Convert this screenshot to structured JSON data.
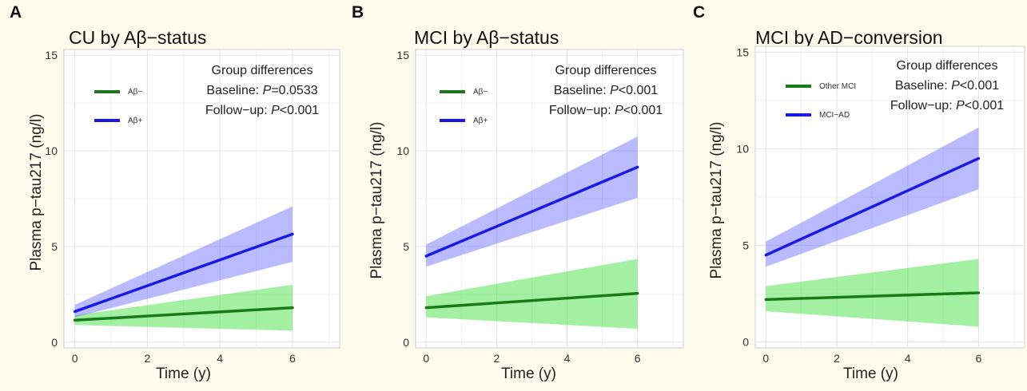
{
  "figure": {
    "panels": [
      {
        "letter": "A",
        "title": "CU by Aβ−status",
        "ylabel": "Plasma p−tau217 (ng/l)",
        "xlabel": "Time (y)",
        "annotation": {
          "heading": "Group differences",
          "baseline_prefix": "Baseline: ",
          "baseline_p": "P",
          "baseline_value": "=0.0533",
          "followup_prefix": "Follow−up: ",
          "followup_p": "P",
          "followup_value": "<0.001"
        }
      },
      {
        "letter": "B",
        "title": "MCI by Aβ−status",
        "ylabel": "Plasma p−tau217 (ng/l)",
        "xlabel": "Time (y)",
        "annotation": {
          "heading": "Group differences",
          "baseline_prefix": "Baseline: ",
          "baseline_p": "P",
          "baseline_value": "<0.001",
          "followup_prefix": "Follow−up: ",
          "followup_p": "P",
          "followup_value": "<0.001"
        }
      },
      {
        "letter": "C",
        "title": "MCI by AD−conversion",
        "ylabel": "Plasma p−tau217 (ng/l)",
        "xlabel": "Time (y)",
        "annotation": {
          "heading": "Group differences",
          "baseline_prefix": "Baseline: ",
          "baseline_p": "P",
          "baseline_value": "<0.001",
          "followup_prefix": "Follow−up: ",
          "followup_p": "P",
          "followup_value": "<0.001"
        }
      }
    ]
  },
  "chart_data": [
    {
      "type": "line",
      "title": "CU by Aβ−status",
      "xlabel": "Time (y)",
      "ylabel": "Plasma p−tau217 (ng/l)",
      "xlim": [
        -0.3,
        7.3
      ],
      "ylim": [
        -0.3,
        15.3
      ],
      "x_ticks": [
        0,
        2,
        4,
        6
      ],
      "y_ticks": [
        0,
        5,
        10,
        15
      ],
      "grid": true,
      "legend_position": "top-left",
      "series": [
        {
          "name": "Aβ−",
          "color": "#1a7a1a",
          "band_color": "#33dd33",
          "x": [
            0,
            6
          ],
          "y": [
            1.15,
            1.8
          ],
          "ci_lower": [
            0.9,
            0.6
          ],
          "ci_upper": [
            1.4,
            3.0
          ]
        },
        {
          "name": "Aβ+",
          "color": "#1a1ae6",
          "band_color": "#6666ff",
          "x": [
            0,
            6
          ],
          "y": [
            1.6,
            5.65
          ],
          "ci_lower": [
            1.3,
            4.2
          ],
          "ci_upper": [
            1.95,
            7.1
          ]
        }
      ]
    },
    {
      "type": "line",
      "title": "MCI by Aβ−status",
      "xlabel": "Time (y)",
      "ylabel": "Plasma p−tau217 (ng/l)",
      "xlim": [
        -0.3,
        7.3
      ],
      "ylim": [
        -0.3,
        15.3
      ],
      "x_ticks": [
        0,
        2,
        4,
        6
      ],
      "y_ticks": [
        0,
        5,
        10,
        15
      ],
      "grid": true,
      "legend_position": "top-left",
      "series": [
        {
          "name": "Aβ−",
          "color": "#1a7a1a",
          "band_color": "#33dd33",
          "x": [
            0,
            6
          ],
          "y": [
            1.8,
            2.55
          ],
          "ci_lower": [
            1.3,
            0.7
          ],
          "ci_upper": [
            2.4,
            4.35
          ]
        },
        {
          "name": "Aβ+",
          "color": "#1a1ae6",
          "band_color": "#6666ff",
          "x": [
            0,
            6
          ],
          "y": [
            4.5,
            9.15
          ],
          "ci_lower": [
            3.95,
            7.55
          ],
          "ci_upper": [
            5.1,
            10.75
          ]
        }
      ]
    },
    {
      "type": "line",
      "title": "MCI by AD−conversion",
      "xlabel": "Time (y)",
      "ylabel": "Plasma p−tau217 (ng/l)",
      "xlim": [
        -0.3,
        7.3
      ],
      "ylim": [
        -0.3,
        15.3
      ],
      "x_ticks": [
        0,
        2,
        4,
        6
      ],
      "y_ticks": [
        0,
        5,
        10,
        15
      ],
      "grid": true,
      "legend_position": "top-left",
      "series": [
        {
          "name": "Other MCI",
          "color": "#1a7a1a",
          "band_color": "#33dd33",
          "x": [
            0,
            6
          ],
          "y": [
            2.2,
            2.55
          ],
          "ci_lower": [
            1.6,
            0.8
          ],
          "ci_upper": [
            2.9,
            4.3
          ]
        },
        {
          "name": "MCI−AD",
          "color": "#1a1ae6",
          "band_color": "#6666ff",
          "x": [
            0,
            6
          ],
          "y": [
            4.5,
            9.5
          ],
          "ci_lower": [
            3.9,
            7.9
          ],
          "ci_upper": [
            5.2,
            11.1
          ]
        }
      ]
    }
  ]
}
